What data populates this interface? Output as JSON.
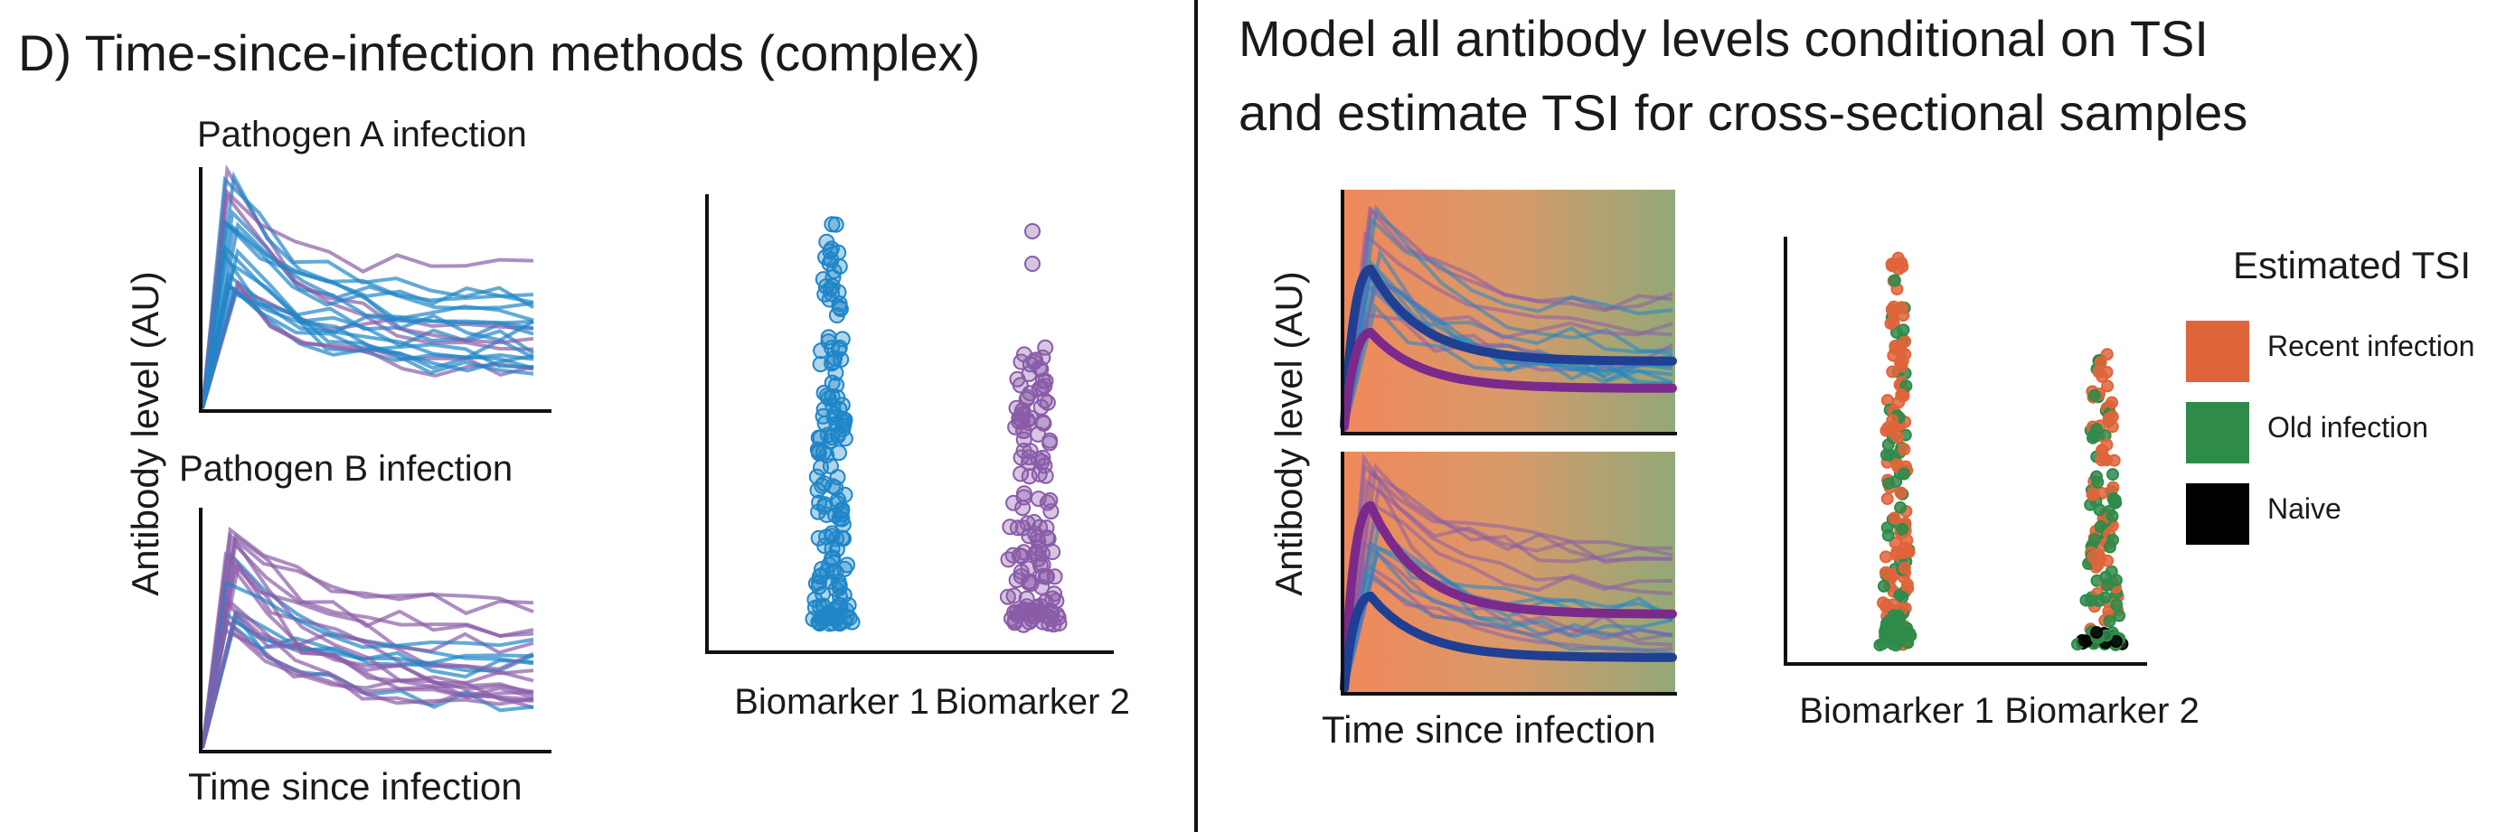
{
  "left_panel": {
    "title": "D) Time-since-infection methods (complex)",
    "plot_a_title": "Pathogen A infection",
    "plot_b_title": "Pathogen B infection",
    "y_axis_label": "Antibody level (AU)",
    "x_axis_label": "Time since infection",
    "strip_labels": [
      "Biomarker 1",
      "Biomarker 2"
    ]
  },
  "right_panel": {
    "title_line1": "Model all antibody levels conditional on TSI",
    "title_line2": "and estimate TSI for cross-sectional samples",
    "y_axis_label": "Antibody level (AU)",
    "x_axis_label": "Time since infection",
    "strip_labels": [
      "Biomarker 1",
      "Biomarker 2"
    ],
    "legend": {
      "title": "Estimated TSI",
      "items": [
        {
          "label": "Recent infection",
          "color": "#e0643a"
        },
        {
          "label": "Old infection",
          "color": "#2e8b4a"
        },
        {
          "label": "Naive",
          "color": "#000000"
        }
      ]
    }
  },
  "colors": {
    "biomarker1": "#1f86c8",
    "biomarker2": "#8a5ca8",
    "fit_blue": "#1f3f93",
    "fit_purple": "#7b2a8c",
    "gradient_start": "#f0885a",
    "gradient_end": "#93a878"
  }
}
